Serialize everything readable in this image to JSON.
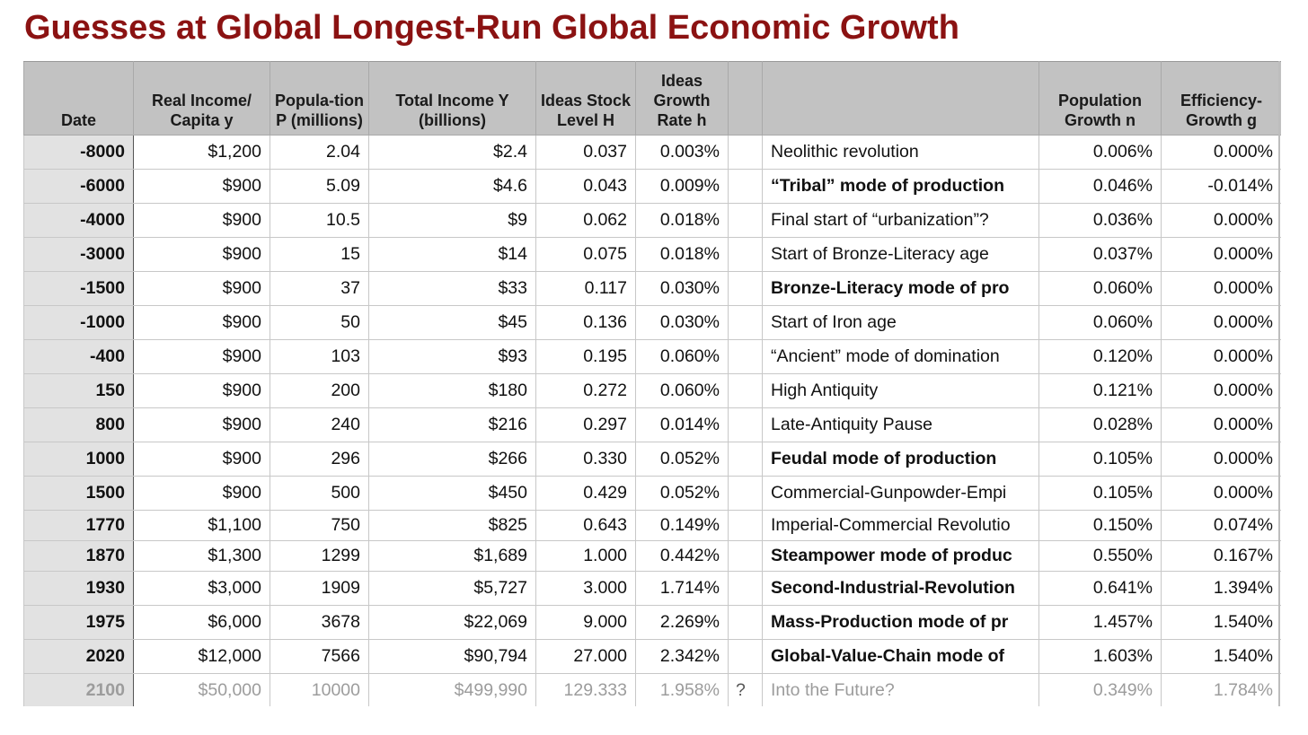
{
  "title": "Guesses at Global Longest-Run Global Economic Growth",
  "headers": {
    "date": "Date",
    "income": "Real Income/ Capita y",
    "population": "Popula-tion P (millions)",
    "total_income": "Total Income Y (billions)",
    "ideas_stock": "Ideas Stock Level H",
    "ideas_growth": "Ideas Growth Rate h",
    "flag": "",
    "event": "",
    "pop_growth": "Population Growth n",
    "eff_growth": "Efficiency-Growth g"
  },
  "rows": [
    {
      "date": "-8000",
      "income": "$1,200",
      "pop": "2.04",
      "total": "$2.4",
      "stock": "0.037",
      "growth": "0.003%",
      "flag": "",
      "event": "Neolithic revolution",
      "n": "0.006%",
      "g": "0.000%"
    },
    {
      "date": "-6000",
      "income": "$900",
      "pop": "5.09",
      "total": "$4.6",
      "stock": "0.043",
      "growth": "0.009%",
      "flag": "",
      "event": "“Tribal” mode of production",
      "n": "0.046%",
      "g": "-0.014%"
    },
    {
      "date": "-4000",
      "income": "$900",
      "pop": "10.5",
      "total": "$9",
      "stock": "0.062",
      "growth": "0.018%",
      "flag": "",
      "event": "Final start of “urbanization”?",
      "n": "0.036%",
      "g": "0.000%"
    },
    {
      "date": "-3000",
      "income": "$900",
      "pop": "15",
      "total": "$14",
      "stock": "0.075",
      "growth": "0.018%",
      "flag": "",
      "event": "Start of Bronze-Literacy age",
      "n": "0.037%",
      "g": "0.000%"
    },
    {
      "date": "-1500",
      "income": "$900",
      "pop": "37",
      "total": "$33",
      "stock": "0.117",
      "growth": "0.030%",
      "flag": "",
      "event": "Bronze-Literacy mode of pro",
      "n": "0.060%",
      "g": "0.000%"
    },
    {
      "date": "-1000",
      "income": "$900",
      "pop": "50",
      "total": "$45",
      "stock": "0.136",
      "growth": "0.030%",
      "flag": "",
      "event": "Start of Iron age",
      "n": "0.060%",
      "g": "0.000%"
    },
    {
      "date": "-400",
      "income": "$900",
      "pop": "103",
      "total": "$93",
      "stock": "0.195",
      "growth": "0.060%",
      "flag": "",
      "event": "“Ancient” mode of domination",
      "n": "0.120%",
      "g": "0.000%"
    },
    {
      "date": "150",
      "income": "$900",
      "pop": "200",
      "total": "$180",
      "stock": "0.272",
      "growth": "0.060%",
      "flag": "",
      "event": "High Antiquity",
      "n": "0.121%",
      "g": "0.000%"
    },
    {
      "date": "800",
      "income": "$900",
      "pop": "240",
      "total": "$216",
      "stock": "0.297",
      "growth": "0.014%",
      "flag": "",
      "event": "Late-Antiquity Pause",
      "n": "0.028%",
      "g": "0.000%"
    },
    {
      "date": "1000",
      "income": "$900",
      "pop": "296",
      "total": "$266",
      "stock": "0.330",
      "growth": "0.052%",
      "flag": "",
      "event": "Feudal mode of production",
      "n": "0.105%",
      "g": "0.000%"
    },
    {
      "date": "1500",
      "income": "$900",
      "pop": "500",
      "total": "$450",
      "stock": "0.429",
      "growth": "0.052%",
      "flag": "",
      "event": "Commercial-Gunpowder-Empi",
      "n": "0.105%",
      "g": "0.000%"
    },
    {
      "date": "1770",
      "income": "$1,100",
      "pop": "750",
      "total": "$825",
      "stock": "0.643",
      "growth": "0.149%",
      "flag": "",
      "event": "Imperial-Commercial Revolutio",
      "n": "0.150%",
      "g": "0.074%"
    },
    {
      "date": "1870",
      "income": "$1,300",
      "pop": "1299",
      "total": "$1,689",
      "stock": "1.000",
      "growth": "0.442%",
      "flag": "",
      "event": "Steampower mode of produc",
      "n": "0.550%",
      "g": "0.167%"
    },
    {
      "date": "1930",
      "income": "$3,000",
      "pop": "1909",
      "total": "$5,727",
      "stock": "3.000",
      "growth": "1.714%",
      "flag": "",
      "event": "Second-Industrial-Revolution",
      "n": "0.641%",
      "g": "1.394%"
    },
    {
      "date": "1975",
      "income": "$6,000",
      "pop": "3678",
      "total": "$22,069",
      "stock": "9.000",
      "growth": "2.269%",
      "flag": "",
      "event": "Mass-Production mode of pr",
      "n": "1.457%",
      "g": "1.540%"
    },
    {
      "date": "2020",
      "income": "$12,000",
      "pop": "7566",
      "total": "$90,794",
      "stock": "27.000",
      "growth": "2.342%",
      "flag": "",
      "event": "Global-Value-Chain mode of",
      "n": "1.603%",
      "g": "1.540%"
    },
    {
      "date": "2100",
      "income": "$50,000",
      "pop": "10000",
      "total": "$499,990",
      "stock": "129.333",
      "growth": "1.958%",
      "flag": "?",
      "event": "Into the Future?",
      "n": "0.349%",
      "g": "1.784%"
    }
  ]
}
